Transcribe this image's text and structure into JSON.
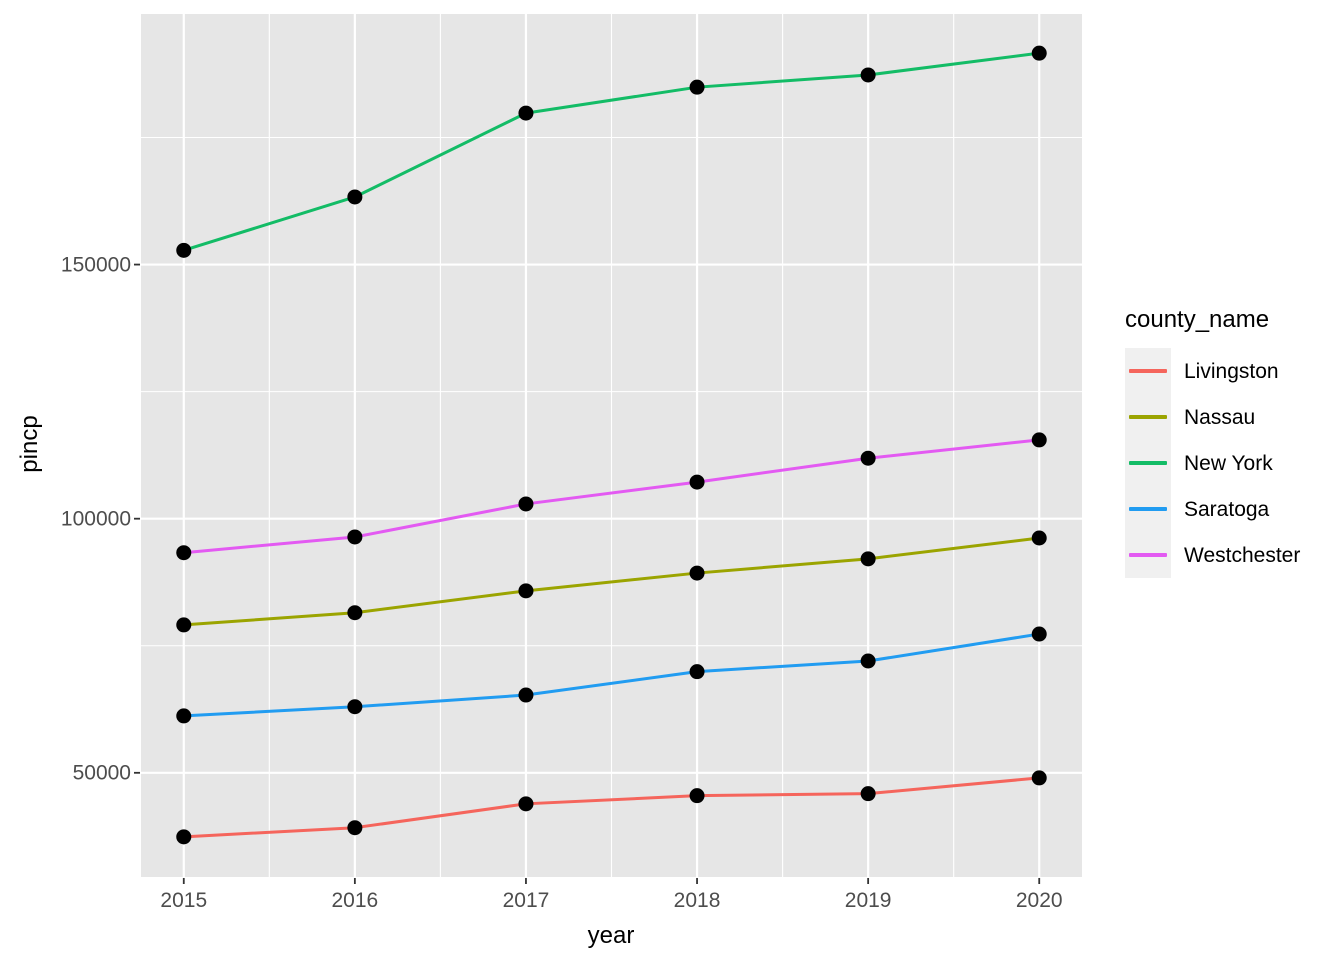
{
  "figure": {
    "background": "#FFFFFF"
  },
  "legend": {
    "title": "county_name",
    "key_background": "#F0F0F0"
  },
  "chart_data": {
    "type": "line",
    "title": "",
    "xlabel": "year",
    "ylabel": "pincp",
    "x": [
      2015,
      2016,
      2017,
      2018,
      2019,
      2020
    ],
    "series": [
      {
        "name": "Livingston",
        "color": "#F5655C",
        "values": [
          37400,
          39200,
          43900,
          45500,
          45900,
          49000
        ]
      },
      {
        "name": "Nassau",
        "color": "#9BA400",
        "values": [
          79100,
          81500,
          85800,
          89300,
          92100,
          96200
        ]
      },
      {
        "name": "New York",
        "color": "#13BC66",
        "values": [
          152800,
          163300,
          179800,
          184900,
          187300,
          191600
        ]
      },
      {
        "name": "Saratoga",
        "color": "#219CF1",
        "values": [
          61200,
          63000,
          65300,
          69900,
          72000,
          77300
        ]
      },
      {
        "name": "Westchester",
        "color": "#E35AF2",
        "values": [
          93300,
          96400,
          102900,
          107200,
          111900,
          115500
        ]
      }
    ],
    "xlim": [
      2014.75,
      2020.25
    ],
    "ylim": [
      29500,
      199300
    ],
    "x_ticks": [
      2015,
      2016,
      2017,
      2018,
      2019,
      2020
    ],
    "x_tick_labels": [
      "2015",
      "2016",
      "2017",
      "2018",
      "2019",
      "2020"
    ],
    "y_ticks": [
      50000,
      100000,
      150000
    ],
    "y_tick_labels": [
      "50000",
      "100000",
      "150000"
    ],
    "x_minor_ticks": [
      2015.5,
      2016.5,
      2017.5,
      2018.5,
      2019.5
    ],
    "y_minor_ticks": [
      75000,
      125000,
      175000
    ],
    "grid": true,
    "legend_position": "right",
    "panel_background": "#E6E6E6",
    "gridline_color": "#FFFFFF",
    "tick_mark_color": "#333333",
    "tick_label_color": "#4D4D4D",
    "point_color": "#000000"
  }
}
